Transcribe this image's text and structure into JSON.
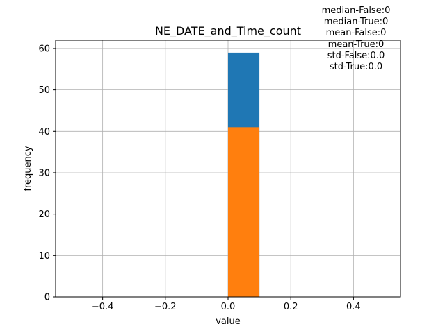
{
  "chart_data": {
    "type": "bar",
    "title": "NE_DATE_and_Time_count",
    "xlabel": "value",
    "ylabel": "frequency",
    "xlim": [
      -0.55,
      0.55
    ],
    "ylim": [
      0,
      62
    ],
    "grid": true,
    "x_ticks": [
      "−0.4",
      "−0.2",
      "0.0",
      "0.2",
      "0.4"
    ],
    "x_tick_values": [
      -0.4,
      -0.2,
      0.0,
      0.2,
      0.4
    ],
    "y_ticks": [
      "0",
      "10",
      "20",
      "30",
      "40",
      "50",
      "60"
    ],
    "y_tick_values": [
      0,
      10,
      20,
      30,
      40,
      50,
      60
    ],
    "series": [
      {
        "color": "#1f77b4",
        "bins": [
          {
            "x0": 0.0,
            "x1": 0.1,
            "value": 59
          }
        ]
      },
      {
        "color": "#ff7f0e",
        "bins": [
          {
            "x0": 0.0,
            "x1": 0.1,
            "value": 41
          }
        ]
      }
    ],
    "annotations": [
      "median-False:0",
      "median-True:0",
      "mean-False:0",
      "mean-True:0",
      "std-False:0.0",
      "std-True:0.0"
    ]
  }
}
